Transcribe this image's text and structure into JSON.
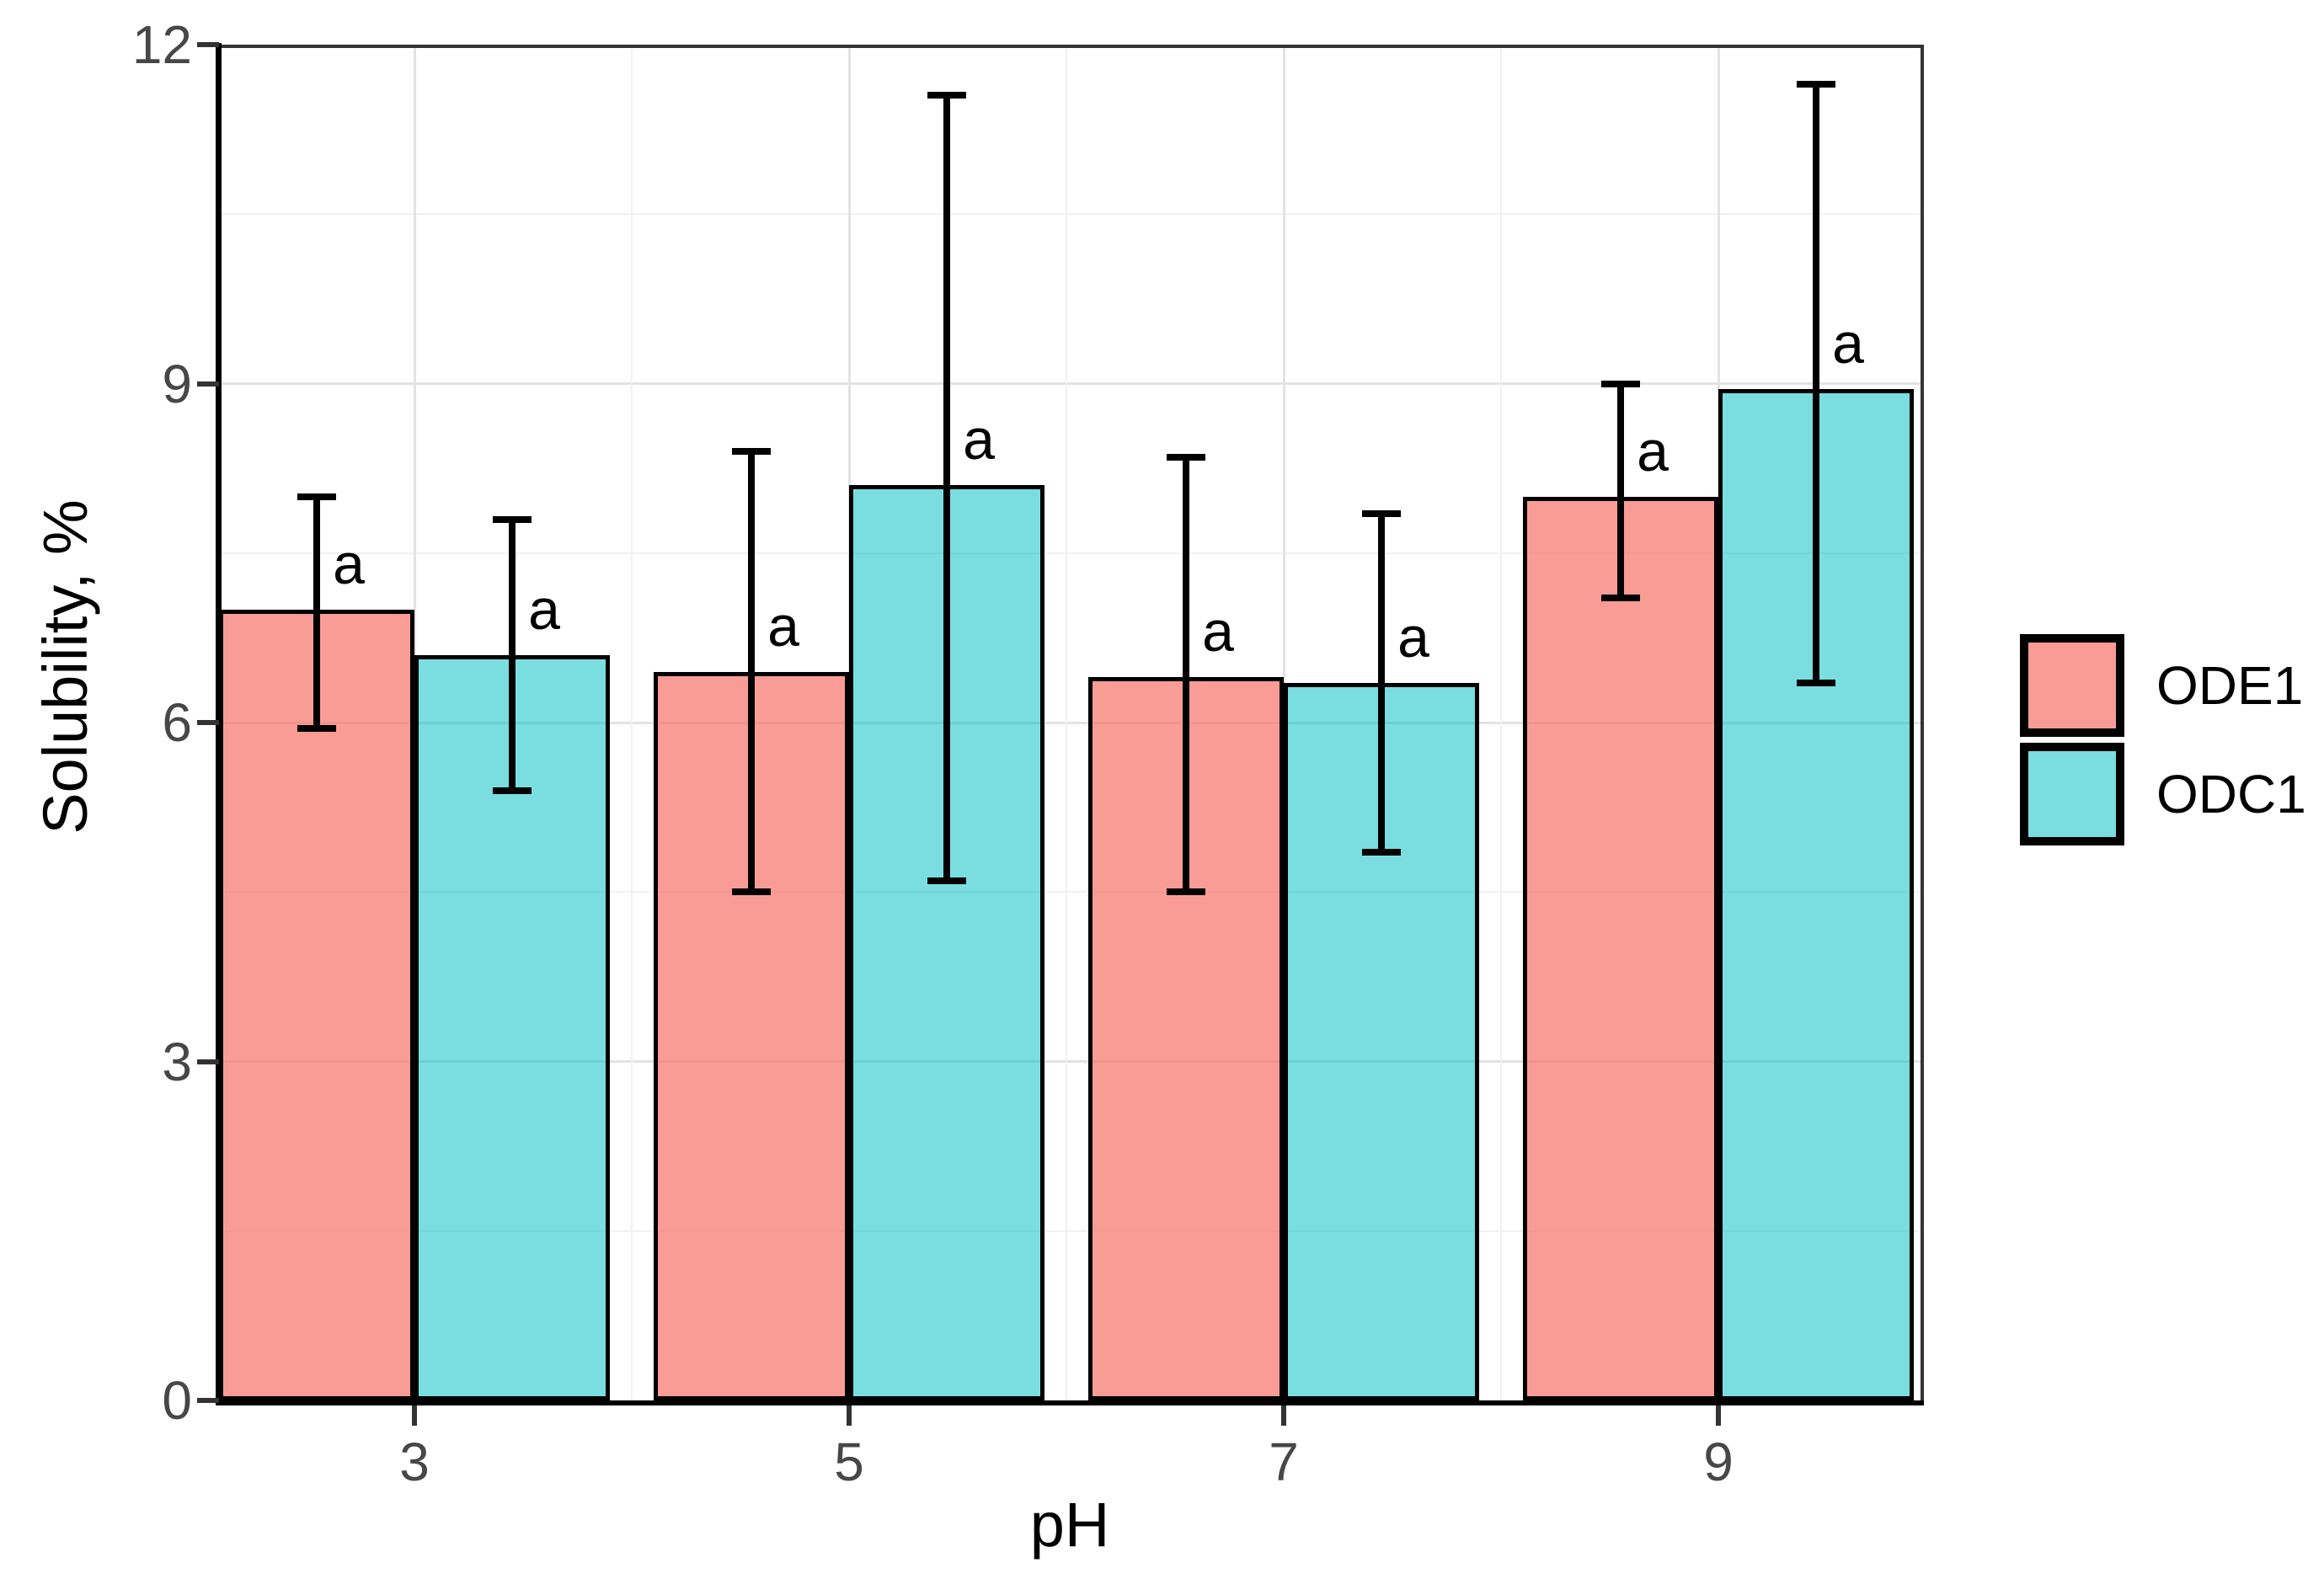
{
  "chart_data": {
    "type": "bar",
    "title": "",
    "xlabel": "pH",
    "ylabel": "Solubility, %",
    "categories": [
      "3",
      "5",
      "7",
      "9"
    ],
    "series": [
      {
        "name": "ODE1",
        "color": "#F8766D",
        "fill": "rgba(248,118,109,0.72)",
        "values": [
          7.0,
          6.45,
          6.4,
          8.0
        ],
        "err_low": [
          5.95,
          4.5,
          4.5,
          7.1
        ],
        "err_high": [
          8.0,
          8.4,
          8.35,
          9.0
        ],
        "point_labels": [
          "a",
          "a",
          "a",
          "a"
        ]
      },
      {
        "name": "ODC1",
        "color": "#00BFC4",
        "fill": "rgba(0,191,196,0.52)",
        "values": [
          6.6,
          8.1,
          6.35,
          8.95
        ],
        "err_low": [
          5.4,
          4.6,
          4.85,
          6.35
        ],
        "err_high": [
          7.8,
          11.55,
          7.85,
          11.65
        ],
        "point_labels": [
          "a",
          "a",
          "a",
          "a"
        ]
      }
    ],
    "ylim": [
      0,
      12
    ],
    "yticks": [
      0,
      3,
      6,
      9,
      12
    ],
    "yticks_minor": [
      1.5,
      4.5,
      7.5,
      10.5
    ],
    "grid": "major+minor",
    "error_bars": true,
    "legend_position": "right-middle"
  },
  "colors": {
    "background": "#ffffff",
    "bar_border": "#000000",
    "error_bar": "#000000",
    "grid_major": "#e3e3e3",
    "grid_minor": "#f1f1f1",
    "tick_label": "#474747",
    "axis_line": "#000000",
    "panel_border": "#333333"
  }
}
